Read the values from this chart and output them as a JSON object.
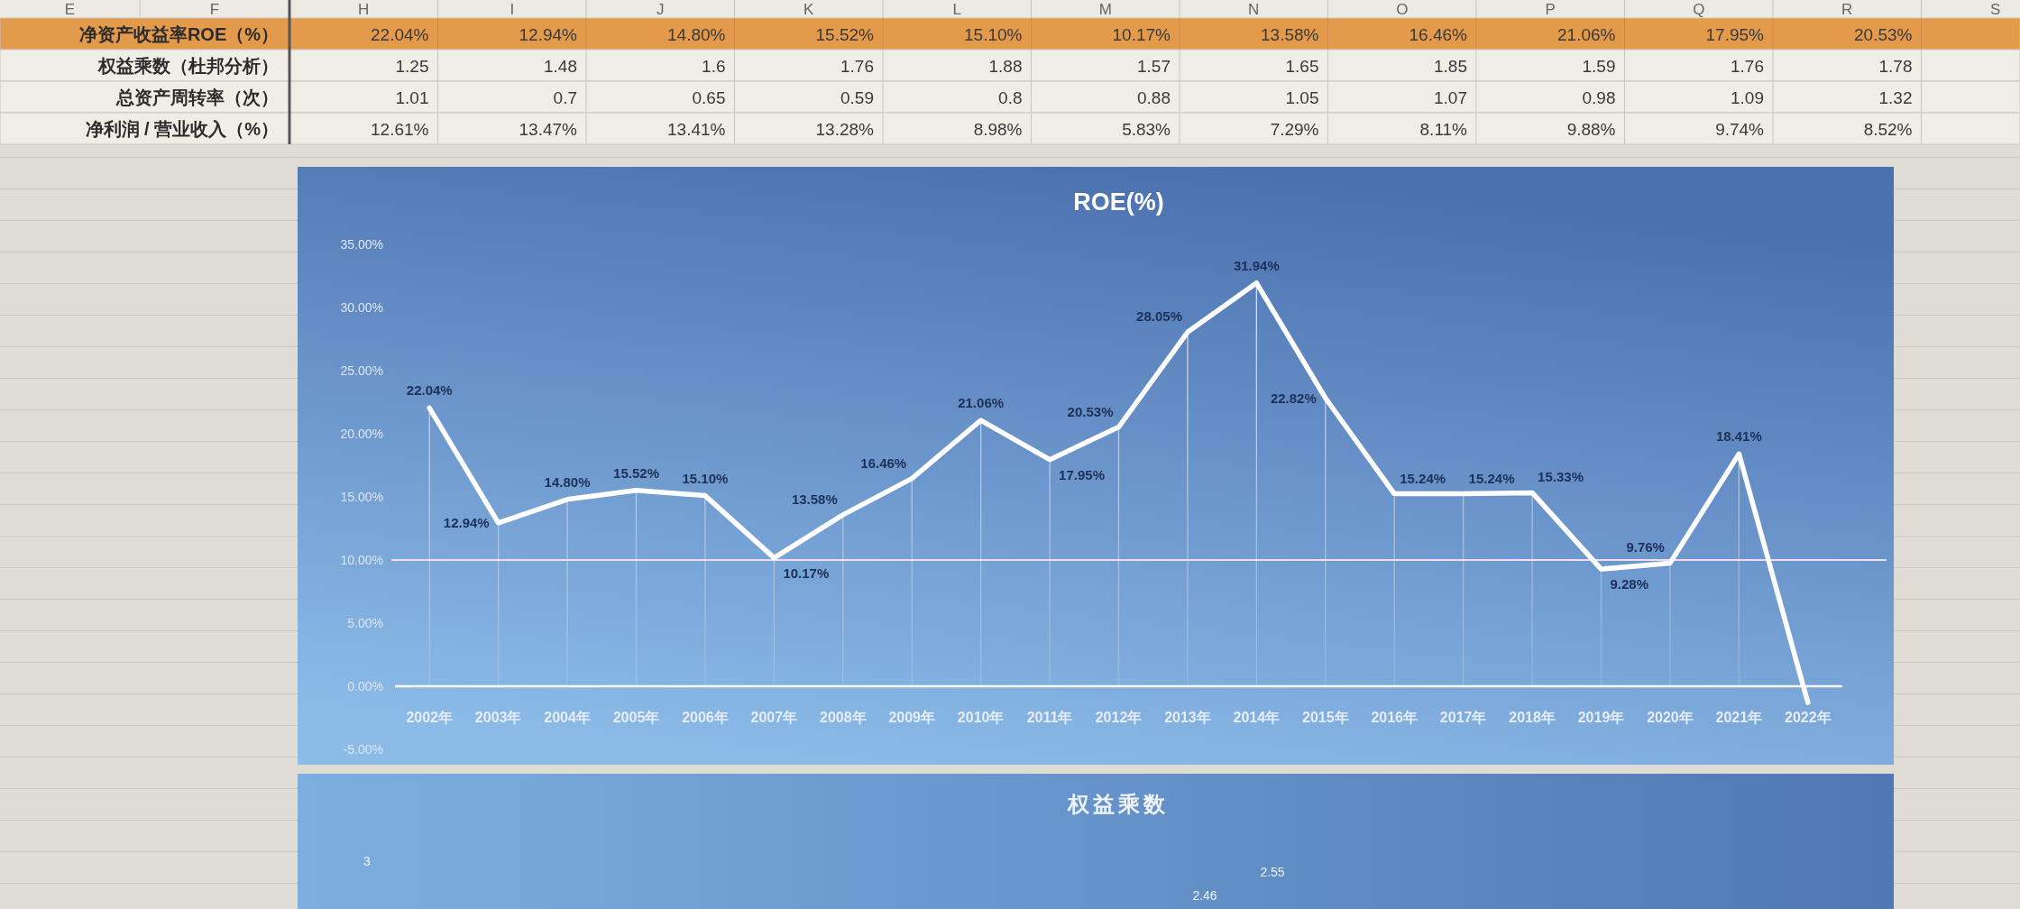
{
  "chart_data": [
    {
      "type": "other",
      "categories": [
        "E",
        "F",
        "H",
        "I",
        "J",
        "K",
        "L",
        "M",
        "N",
        "O",
        "P",
        "Q",
        "R",
        "S"
      ],
      "y_categories": [
        "净资产收益率ROE（%）",
        "权益乘数（杜邦分析）",
        "总资产周转率（次）",
        "净利润 / 营业收入（%）"
      ],
      "cell_labels": [
        [
          null,
          null,
          "22.04%",
          "12.94%",
          "14.80%",
          "15.52%",
          "15.10%",
          "10.17%",
          "13.58%",
          "16.46%",
          "21.06%",
          "17.95%",
          "20.53%",
          null
        ],
        [
          null,
          null,
          "1.25",
          "1.48",
          "1.6",
          "1.76",
          "1.88",
          "1.57",
          "1.65",
          "1.85",
          "1.59",
          "1.76",
          "1.78",
          null
        ],
        [
          null,
          null,
          "1.01",
          "0.7",
          "0.65",
          "0.59",
          "0.8",
          "0.88",
          "1.05",
          "1.07",
          "0.98",
          "1.09",
          "1.32",
          null
        ],
        [
          null,
          null,
          "12.61%",
          "13.47%",
          "13.41%",
          "13.28%",
          "8.98%",
          "5.83%",
          "7.29%",
          "8.11%",
          "9.88%",
          "9.74%",
          "8.52%",
          null
        ]
      ],
      "colors": [
        "#e39a4a",
        null,
        null,
        null
      ]
    },
    {
      "type": "line",
      "title": "ROE(%)",
      "categories": [
        "2002年",
        "2003年",
        "2004年",
        "2005年",
        "2006年",
        "2007年",
        "2008年",
        "2009年",
        "2010年",
        "2011年",
        "2012年",
        "2013年",
        "2014年",
        "2015年",
        "2016年",
        "2017年",
        "2018年",
        "2019年",
        "2020年",
        "2021年",
        "2022年"
      ],
      "series": [
        {
          "color": "#ffffff",
          "values": [
            22.04,
            12.94,
            14.8,
            15.52,
            15.1,
            10.17,
            13.58,
            16.46,
            21.06,
            17.95,
            20.53,
            28.05,
            31.94,
            22.82,
            15.24,
            15.24,
            15.33,
            9.28,
            9.76,
            18.41,
            -1.3
          ],
          "value_labels": [
            "22.04%",
            "12.94%",
            "14.80%",
            "15.52%",
            "15.10%",
            "10.17%",
            "13.58%",
            "16.46%",
            "21.06%",
            "17.95%",
            "20.53%",
            "28.05%",
            "31.94%",
            "22.82%",
            "15.24%",
            "15.24%",
            "15.33%",
            "9.28%",
            "9.76%",
            "18.41%",
            null
          ]
        }
      ],
      "ylim": [
        -5,
        35
      ],
      "yticks": [
        {
          "value": -5,
          "label": "-5.00%"
        },
        {
          "value": 0,
          "label": "0.00%"
        },
        {
          "value": 5,
          "label": "5.00%"
        },
        {
          "value": 10,
          "label": "10.00%"
        },
        {
          "value": 15,
          "label": "15.00%"
        },
        {
          "value": 20,
          "label": "20.00%"
        },
        {
          "value": 25,
          "label": "25.00%"
        },
        {
          "value": 30,
          "label": "30.00%"
        },
        {
          "value": 35,
          "label": "35.00%"
        }
      ],
      "ref_lines": [
        {
          "axis": "y",
          "value": 10,
          "color": "#f2dcf2"
        }
      ]
    },
    {
      "type": "other",
      "title": "权益乘数",
      "annotations": [
        "3",
        "2.55",
        "2.46"
      ]
    }
  ]
}
